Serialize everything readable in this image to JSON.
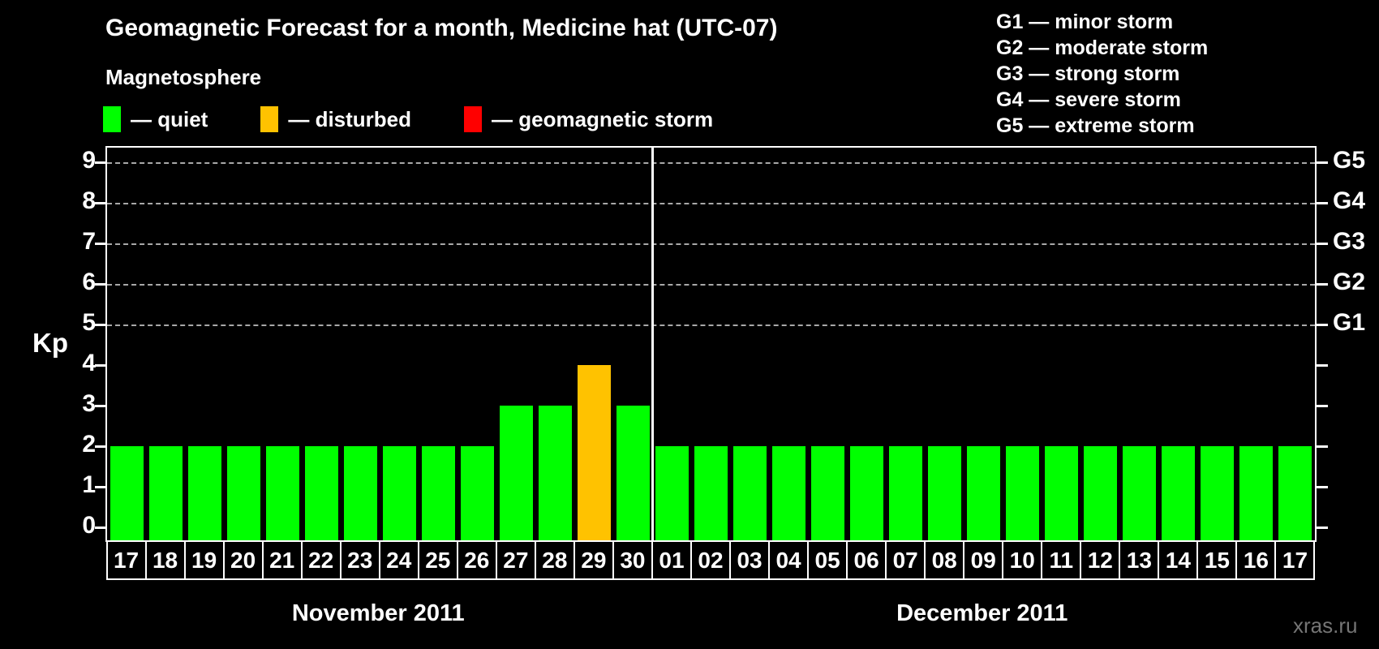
{
  "title": "Geomagnetic Forecast for a month, Medicine hat (UTC-07)",
  "subtitle": "Magnetosphere",
  "legend": {
    "items": [
      {
        "name": "quiet",
        "label": "— quiet",
        "color": "#00ff00"
      },
      {
        "name": "disturbed",
        "label": "— disturbed",
        "color": "#ffc200"
      },
      {
        "name": "storm",
        "label": "— geomagnetic storm",
        "color": "#ff0000"
      }
    ]
  },
  "g_legend": [
    "G1 — minor storm",
    "G2 — moderate storm",
    "G3 — strong storm",
    "G4 — severe storm",
    "G5 — extreme storm"
  ],
  "chart_data": {
    "type": "bar",
    "title": "Geomagnetic Forecast for a month, Medicine hat (UTC-07)",
    "ylabel": "Kp",
    "ylim": [
      0,
      9
    ],
    "yticks": [
      0,
      1,
      2,
      3,
      4,
      5,
      6,
      7,
      8,
      9
    ],
    "grid_levels": [
      5,
      6,
      7,
      8,
      9
    ],
    "grid_on": true,
    "right_axis": [
      {
        "label": "G1",
        "level": 5
      },
      {
        "label": "G2",
        "level": 6
      },
      {
        "label": "G3",
        "level": 7
      },
      {
        "label": "G4",
        "level": 8
      },
      {
        "label": "G5",
        "level": 9
      }
    ],
    "state_colors": {
      "quiet": "#00ff00",
      "disturbed": "#ffc200",
      "storm": "#ff0000"
    },
    "months": [
      {
        "label": "November 2011",
        "days": [
          "17",
          "18",
          "19",
          "20",
          "21",
          "22",
          "23",
          "24",
          "25",
          "26",
          "27",
          "28",
          "29",
          "30"
        ],
        "values": [
          2,
          2,
          2,
          2,
          2,
          2,
          2,
          2,
          2,
          2,
          3,
          3,
          4,
          3
        ],
        "states": [
          "quiet",
          "quiet",
          "quiet",
          "quiet",
          "quiet",
          "quiet",
          "quiet",
          "quiet",
          "quiet",
          "quiet",
          "quiet",
          "quiet",
          "disturbed",
          "quiet"
        ]
      },
      {
        "label": "December 2011",
        "days": [
          "01",
          "02",
          "03",
          "04",
          "05",
          "06",
          "07",
          "08",
          "09",
          "10",
          "11",
          "12",
          "13",
          "14",
          "15",
          "16",
          "17"
        ],
        "values": [
          2,
          2,
          2,
          2,
          2,
          2,
          2,
          2,
          2,
          2,
          2,
          2,
          2,
          2,
          2,
          2,
          2
        ],
        "states": [
          "quiet",
          "quiet",
          "quiet",
          "quiet",
          "quiet",
          "quiet",
          "quiet",
          "quiet",
          "quiet",
          "quiet",
          "quiet",
          "quiet",
          "quiet",
          "quiet",
          "quiet",
          "quiet",
          "quiet"
        ]
      }
    ]
  },
  "watermark": "xras.ru"
}
